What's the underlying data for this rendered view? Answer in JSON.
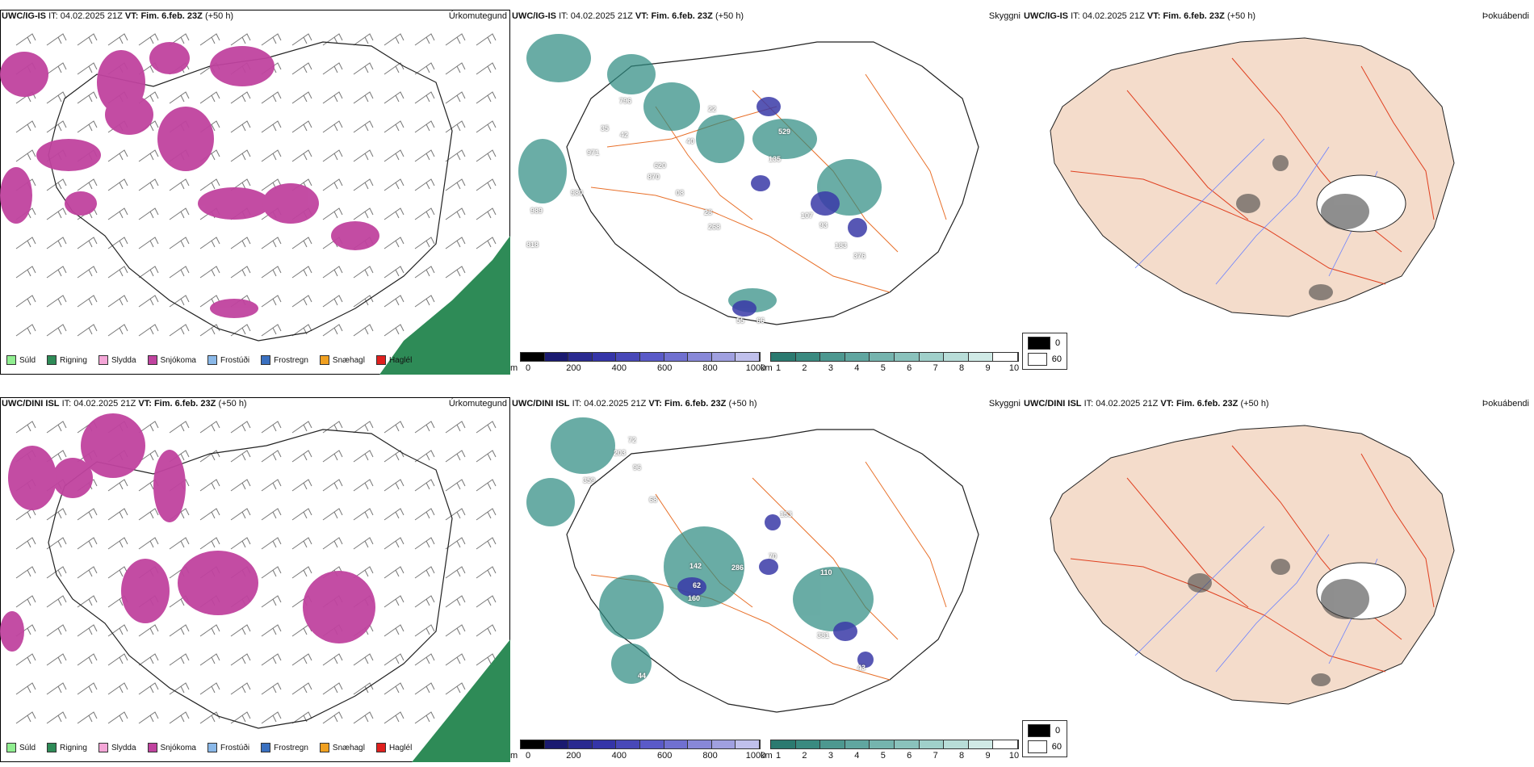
{
  "rows": [
    {
      "model": "UWC/IG-IS",
      "it_label": "IT:",
      "it_value": "04.02.2025 21Z",
      "vt_label": "VT:",
      "vt_value": "Fim. 6.feb. 23Z",
      "lead": "(+50 h)",
      "titles": [
        "Úrkomutegund",
        "Skyggni",
        "Þokuábendi"
      ],
      "left_values": [],
      "mid_values": [
        "796",
        "22",
        "35",
        "42",
        "529",
        "971",
        "40",
        "135",
        "620",
        "870",
        "980",
        "08",
        "107",
        "989",
        "28",
        "93",
        "268",
        "183",
        "818",
        "376",
        "55",
        "66"
      ],
      "blind": [
        "0",
        "60"
      ]
    },
    {
      "model": "UWC/DINI ISL",
      "it_label": "IT:",
      "it_value": "04.02.2025 21Z",
      "vt_label": "VT:",
      "vt_value": "Fim. 6.feb. 23Z",
      "lead": "(+50 h)",
      "titles": [
        "Úrkomutegund",
        "Skyggni",
        "Þokuábendi"
      ],
      "mid_values": [
        "72",
        "203",
        "96",
        "359",
        "68",
        "153",
        "70",
        "142",
        "286",
        "110",
        "62",
        "160",
        "381",
        "43",
        "44"
      ],
      "blind": [
        "0",
        "60"
      ]
    }
  ],
  "precip_legend": [
    {
      "label": "Súld",
      "color": "#90ee90"
    },
    {
      "label": "Rigning",
      "color": "#2e8b57"
    },
    {
      "label": "Slydda",
      "color": "#f4a6d7"
    },
    {
      "label": "Snjókoma",
      "color": "#c0439f"
    },
    {
      "label": "Frostúði",
      "color": "#8ab8e8"
    },
    {
      "label": "Frostregn",
      "color": "#3a70c0"
    },
    {
      "label": "Snæhagl",
      "color": "#f0a020"
    },
    {
      "label": "Haglél",
      "color": "#e0201e"
    }
  ],
  "height_scale": {
    "unit": "m",
    "ticks": [
      "0",
      "200",
      "400",
      "600",
      "800",
      "1000"
    ]
  },
  "vis_scale": {
    "unit": "km",
    "ticks": [
      "1",
      "2",
      "3",
      "4",
      "5",
      "6",
      "7",
      "8",
      "9",
      "10"
    ]
  },
  "colors": {
    "snow": "#c0439f",
    "rain": "#2e8b57",
    "teal": "#2b8a80",
    "blue": "#3a3aa8",
    "land": "#f4dccb",
    "road": "#e8702a"
  }
}
